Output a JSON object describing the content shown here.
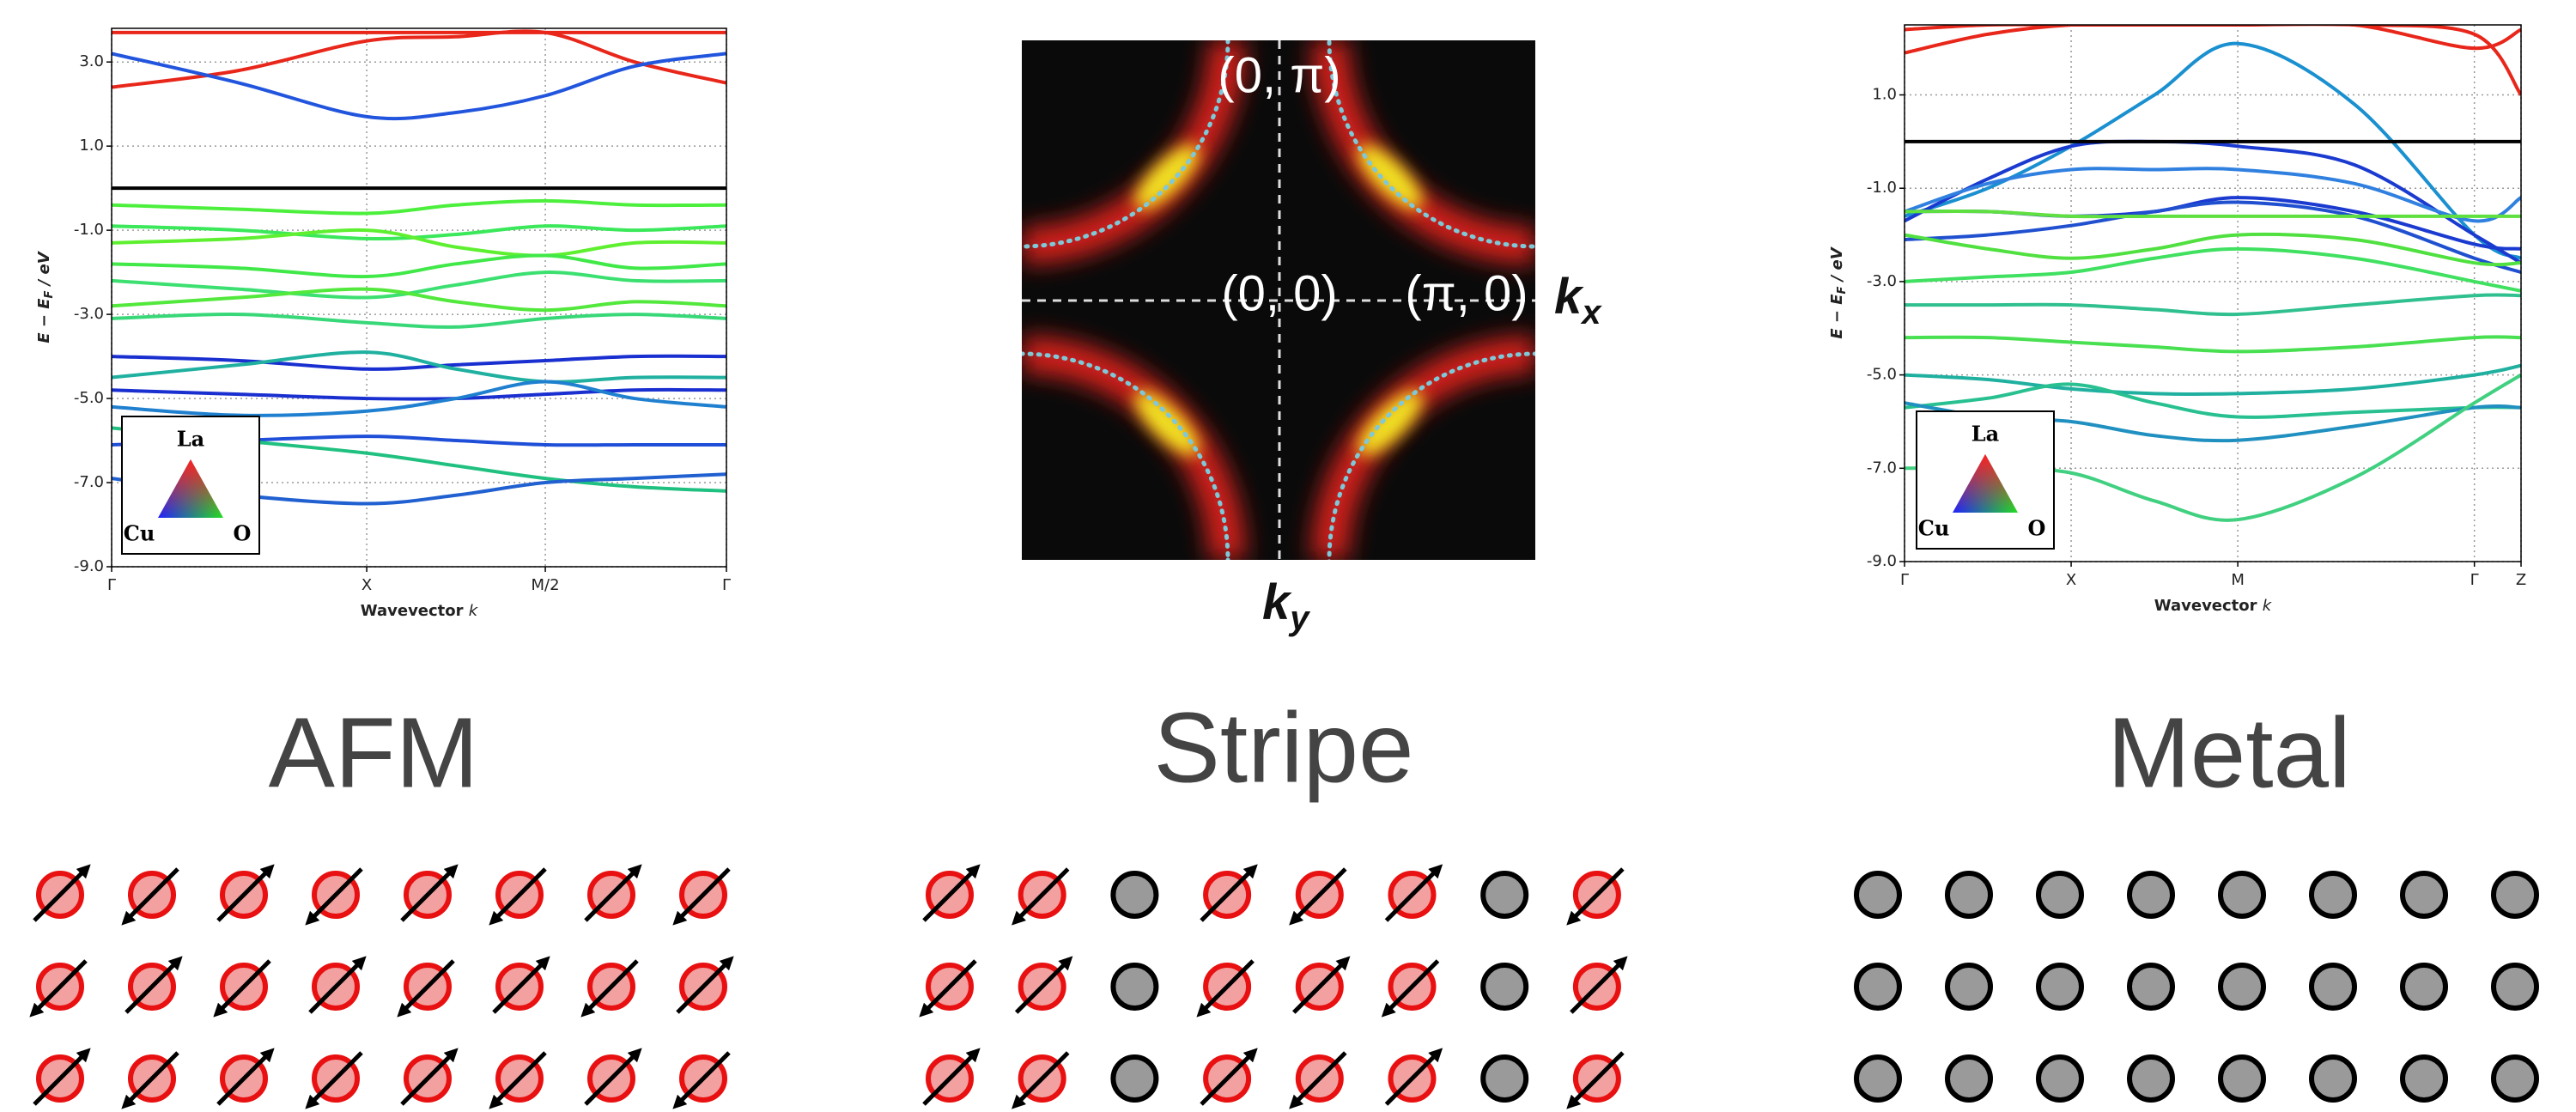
{
  "chart_data": [
    {
      "type": "line",
      "ylabel": [
        "E − E",
        "F",
        " / eV"
      ],
      "xlabel": [
        "Wavevector ",
        "k"
      ],
      "x": [
        0,
        0.5,
        1,
        1.35,
        1.7,
        2.05,
        2.41
      ],
      "xlim": [
        0,
        2.41
      ],
      "xticks": [
        {
          "value": 0,
          "label": "Γ"
        },
        {
          "value": 1,
          "label": "X"
        },
        {
          "value": 1.7,
          "label": "M/2"
        },
        {
          "value": 2.41,
          "label": "Γ"
        }
      ],
      "ylim": [
        -9,
        3.8
      ],
      "yticks": [
        {
          "value": 3,
          "label": "3.0"
        },
        {
          "value": 1,
          "label": "1.0"
        },
        {
          "value": -1,
          "label": "-1.0"
        },
        {
          "value": -3,
          "label": "-3.0"
        },
        {
          "value": -5,
          "label": "-5.0"
        },
        {
          "value": -7,
          "label": "-7.0"
        },
        {
          "value": -9,
          "label": "-9.0"
        }
      ],
      "grid": true,
      "hlines": [
        0
      ],
      "legend": {
        "top": "La",
        "left": "Cu",
        "right": "O"
      },
      "series": [
        {
          "color": "#e8261a",
          "values": [
            2.4,
            2.8,
            3.5,
            3.6,
            3.7,
            3.0,
            2.5
          ]
        },
        {
          "color": "#e8261a",
          "values": [
            3.7,
            3.7,
            3.7,
            3.7,
            3.7,
            3.7,
            3.7
          ]
        },
        {
          "color": "#2255dd",
          "values": [
            3.2,
            2.5,
            1.7,
            1.8,
            2.2,
            2.9,
            3.2
          ]
        },
        {
          "color": "#4cf03c",
          "values": [
            -0.4,
            -0.5,
            -0.6,
            -0.4,
            -0.3,
            -0.4,
            -0.4
          ]
        },
        {
          "color": "#3ae85a",
          "values": [
            -0.9,
            -1.0,
            -1.2,
            -1.1,
            -0.9,
            -1.0,
            -0.9
          ]
        },
        {
          "color": "#5ef030",
          "values": [
            -1.3,
            -1.2,
            -1.0,
            -1.4,
            -1.6,
            -1.3,
            -1.3
          ]
        },
        {
          "color": "#40e848",
          "values": [
            -1.8,
            -1.9,
            -2.1,
            -1.8,
            -1.6,
            -1.9,
            -1.8
          ]
        },
        {
          "color": "#3ce070",
          "values": [
            -2.2,
            -2.4,
            -2.6,
            -2.3,
            -2.0,
            -2.2,
            -2.2
          ]
        },
        {
          "color": "#52e83c",
          "values": [
            -2.8,
            -2.6,
            -2.4,
            -2.7,
            -2.9,
            -2.7,
            -2.8
          ]
        },
        {
          "color": "#38d878",
          "values": [
            -3.1,
            -3.0,
            -3.2,
            -3.3,
            -3.1,
            -3.0,
            -3.1
          ]
        },
        {
          "color": "#1a2fd0",
          "values": [
            -4.0,
            -4.1,
            -4.3,
            -4.2,
            -4.1,
            -4.0,
            -4.0
          ]
        },
        {
          "color": "#1a2fd0",
          "values": [
            -4.8,
            -4.9,
            -5.0,
            -5.0,
            -4.9,
            -4.8,
            -4.8
          ]
        },
        {
          "color": "#20b0a0",
          "values": [
            -4.5,
            -4.2,
            -3.9,
            -4.3,
            -4.6,
            -4.5,
            -4.5
          ]
        },
        {
          "color": "#2080d0",
          "values": [
            -5.2,
            -5.4,
            -5.3,
            -5.0,
            -4.6,
            -5.0,
            -5.2
          ]
        },
        {
          "color": "#1f4fd8",
          "values": [
            -6.1,
            -6.0,
            -5.9,
            -6.0,
            -6.1,
            -6.1,
            -6.1
          ]
        },
        {
          "color": "#20c080",
          "values": [
            -5.7,
            -6.0,
            -6.3,
            -6.6,
            -6.9,
            -7.1,
            -7.2
          ]
        },
        {
          "color": "#2060d0",
          "values": [
            -6.9,
            -7.3,
            -7.5,
            -7.3,
            -7.0,
            -6.9,
            -6.8
          ]
        }
      ]
    },
    {
      "type": "line",
      "ylabel": [
        "E − E",
        "F",
        " / eV"
      ],
      "xlabel": [
        "Wavevector ",
        "k"
      ],
      "x": [
        0,
        0.5,
        1,
        1.5,
        2,
        2.7,
        3.42,
        3.7
      ],
      "xlim": [
        0,
        3.7
      ],
      "xticks": [
        {
          "value": 0,
          "label": "Γ"
        },
        {
          "value": 1,
          "label": "X"
        },
        {
          "value": 2,
          "label": "M"
        },
        {
          "value": 3.42,
          "label": "Γ"
        },
        {
          "value": 3.7,
          "label": "Z"
        }
      ],
      "ylim": [
        -9,
        2.5
      ],
      "yticks": [
        {
          "value": 1,
          "label": "1.0"
        },
        {
          "value": -1,
          "label": "-1.0"
        },
        {
          "value": -3,
          "label": "-3.0"
        },
        {
          "value": -5,
          "label": "-5.0"
        },
        {
          "value": -7,
          "label": "-7.0"
        },
        {
          "value": -9,
          "label": "-9.0"
        }
      ],
      "grid": true,
      "hlines": [
        0
      ],
      "legend": {
        "top": "La",
        "left": "Cu",
        "right": "O"
      },
      "series": [
        {
          "color": "#e8261a",
          "values": [
            2.4,
            2.5,
            2.5,
            2.5,
            2.5,
            2.5,
            2.0,
            2.4
          ]
        },
        {
          "color": "#e8261a",
          "values": [
            1.9,
            2.3,
            2.5,
            2.5,
            2.5,
            2.5,
            2.3,
            1.0
          ]
        },
        {
          "color": "#1a90d0",
          "values": [
            -1.6,
            -1.0,
            -0.1,
            1.0,
            2.1,
            0.8,
            -2.0,
            -2.5
          ]
        },
        {
          "color": "#1a3ad0",
          "values": [
            -1.7,
            -0.8,
            -0.1,
            0,
            -0.1,
            -0.5,
            -2.0,
            -2.6
          ]
        },
        {
          "color": "#3080e0",
          "values": [
            -1.5,
            -0.9,
            -0.6,
            -0.6,
            -0.6,
            -0.9,
            -1.7,
            -1.2
          ]
        },
        {
          "color": "#1a3ad0",
          "values": [
            -1.5,
            -1.5,
            -1.6,
            -1.5,
            -1.2,
            -1.5,
            -2.2,
            -2.3
          ]
        },
        {
          "color": "#2050d0",
          "values": [
            -2.1,
            -2.0,
            -1.8,
            -1.5,
            -1.3,
            -1.6,
            -2.5,
            -2.8
          ]
        },
        {
          "color": "#60e040",
          "values": [
            -1.5,
            -1.5,
            -1.6,
            -1.6,
            -1.6,
            -1.6,
            -1.6,
            -1.6
          ]
        },
        {
          "color": "#50e040",
          "values": [
            -2.0,
            -2.3,
            -2.5,
            -2.3,
            -2.0,
            -2.1,
            -2.6,
            -2.6
          ]
        },
        {
          "color": "#40e060",
          "values": [
            -3.0,
            -2.9,
            -2.8,
            -2.5,
            -2.3,
            -2.5,
            -3.0,
            -3.2
          ]
        },
        {
          "color": "#30c090",
          "values": [
            -3.5,
            -3.5,
            -3.5,
            -3.6,
            -3.7,
            -3.5,
            -3.3,
            -3.3
          ]
        },
        {
          "color": "#48e050",
          "values": [
            -4.2,
            -4.2,
            -4.3,
            -4.4,
            -4.5,
            -4.4,
            -4.2,
            -4.2
          ]
        },
        {
          "color": "#20b0a0",
          "values": [
            -5.0,
            -5.1,
            -5.3,
            -5.4,
            -5.4,
            -5.3,
            -5.0,
            -4.8
          ]
        },
        {
          "color": "#28c090",
          "values": [
            -5.7,
            -5.5,
            -5.2,
            -5.6,
            -5.9,
            -5.8,
            -5.7,
            -5.7
          ]
        },
        {
          "color": "#2090c0",
          "values": [
            -5.6,
            -5.9,
            -6.0,
            -6.3,
            -6.4,
            -6.1,
            -5.7,
            -5.7
          ]
        },
        {
          "color": "#40d080",
          "values": [
            -7.0,
            -7.0,
            -7.1,
            -7.7,
            -8.1,
            -7.2,
            -5.6,
            -5.0
          ]
        }
      ]
    }
  ],
  "fermi_surface": {
    "labels": [
      "(0, π)",
      "(0, 0)",
      "(π, 0)"
    ],
    "kx": [
      "k",
      "x"
    ],
    "ky": [
      "k",
      "y"
    ]
  },
  "phases": [
    "AFM",
    "Stripe",
    "Metal"
  ]
}
